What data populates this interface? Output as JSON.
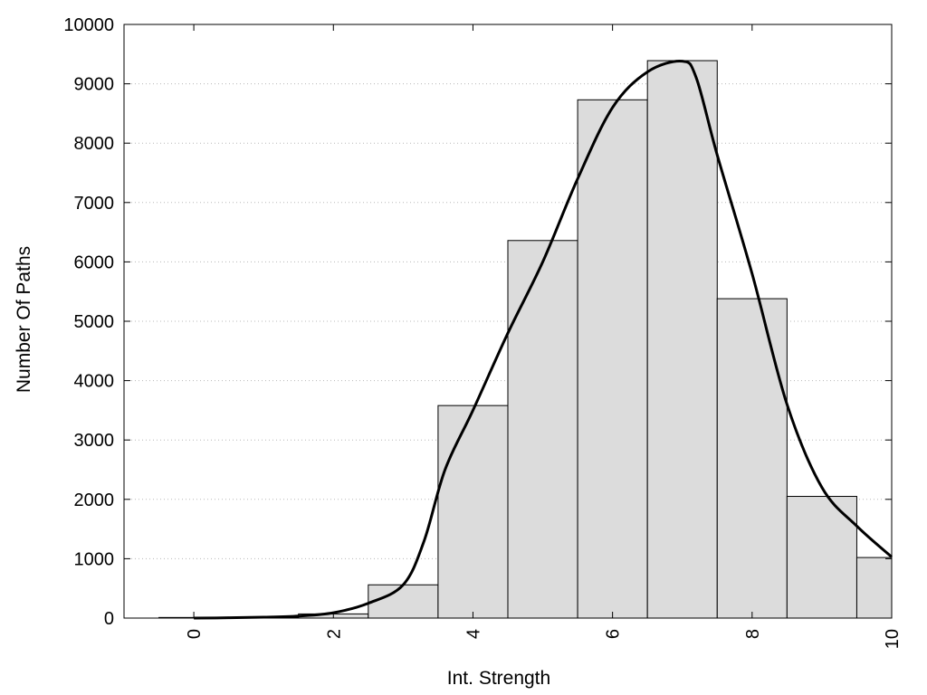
{
  "chart_data": {
    "type": "bar",
    "title": "",
    "xlabel": "Int. Strength",
    "ylabel": "Number Of Paths",
    "xlim": [
      -1,
      10
    ],
    "ylim": [
      0,
      10000
    ],
    "xticks": [
      0,
      2,
      4,
      6,
      8,
      10
    ],
    "yticks": [
      0,
      1000,
      2000,
      3000,
      4000,
      5000,
      6000,
      7000,
      8000,
      9000,
      10000
    ],
    "x_tick_labels": [
      "0",
      "2",
      "4",
      "6",
      "8",
      "10"
    ],
    "y_tick_labels": [
      "0",
      "1000",
      "2000",
      "3000",
      "4000",
      "5000",
      "6000",
      "7000",
      "8000",
      "9000",
      "10000"
    ],
    "grid": "horizontal dotted",
    "bar_color": "#dcdcdc",
    "bar_edge_color": "#000000",
    "curve_color": "#000000",
    "bars": [
      {
        "x": 0,
        "value": 10
      },
      {
        "x": 1,
        "value": 15
      },
      {
        "x": 2,
        "value": 70
      },
      {
        "x": 3,
        "value": 560
      },
      {
        "x": 4,
        "value": 3580
      },
      {
        "x": 5,
        "value": 6360
      },
      {
        "x": 6,
        "value": 8730
      },
      {
        "x": 7,
        "value": 9390
      },
      {
        "x": 8,
        "value": 5380
      },
      {
        "x": 9,
        "value": 2050
      },
      {
        "x": 10,
        "value": 1020
      }
    ],
    "curve": [
      [
        0,
        0
      ],
      [
        0.5,
        5
      ],
      [
        1,
        15
      ],
      [
        1.5,
        35
      ],
      [
        2,
        90
      ],
      [
        2.5,
        250
      ],
      [
        3,
        560
      ],
      [
        3.3,
        1300
      ],
      [
        3.6,
        2500
      ],
      [
        4,
        3500
      ],
      [
        4.5,
        4800
      ],
      [
        5,
        6000
      ],
      [
        5.5,
        7400
      ],
      [
        6,
        8600
      ],
      [
        6.5,
        9200
      ],
      [
        7,
        9380
      ],
      [
        7.2,
        9100
      ],
      [
        7.5,
        7800
      ],
      [
        8,
        5800
      ],
      [
        8.5,
        3600
      ],
      [
        9,
        2200
      ],
      [
        9.5,
        1550
      ],
      [
        10,
        1030
      ]
    ]
  }
}
